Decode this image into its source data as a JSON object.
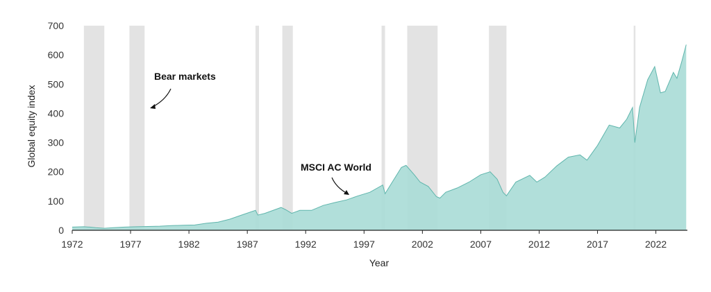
{
  "chart_data": {
    "type": "area",
    "title": "",
    "xlabel": "Year",
    "ylabel": "Global equity index",
    "xlim": [
      1972,
      2024.7
    ],
    "ylim": [
      0,
      700
    ],
    "x_ticks": [
      1972,
      1977,
      1982,
      1987,
      1992,
      1997,
      2002,
      2007,
      2012,
      2017,
      2022
    ],
    "y_ticks": [
      0,
      100,
      200,
      300,
      400,
      500,
      600,
      700
    ],
    "grid": false,
    "legend": "none",
    "colors": {
      "area_fill": "#a8dcd6",
      "area_line": "#5fb5ac",
      "bear_band": "#e3e3e3",
      "axis": "#222222"
    },
    "series": [
      {
        "name": "MSCI AC World",
        "points": [
          [
            1972.0,
            11
          ],
          [
            1973.0,
            12
          ],
          [
            1973.5,
            11
          ],
          [
            1974.0,
            9
          ],
          [
            1974.75,
            7
          ],
          [
            1975.5,
            9
          ],
          [
            1976.5,
            11
          ],
          [
            1977.5,
            12
          ],
          [
            1978.5,
            13
          ],
          [
            1979.5,
            14
          ],
          [
            1980.5,
            16
          ],
          [
            1981.5,
            17
          ],
          [
            1982.5,
            18
          ],
          [
            1983.5,
            24
          ],
          [
            1984.5,
            28
          ],
          [
            1985.5,
            38
          ],
          [
            1986.5,
            52
          ],
          [
            1987.7,
            68
          ],
          [
            1987.9,
            52
          ],
          [
            1988.5,
            58
          ],
          [
            1989.9,
            78
          ],
          [
            1990.3,
            70
          ],
          [
            1990.8,
            58
          ],
          [
            1991.5,
            68
          ],
          [
            1992.5,
            68
          ],
          [
            1993.5,
            85
          ],
          [
            1994.5,
            95
          ],
          [
            1995.5,
            104
          ],
          [
            1996.5,
            118
          ],
          [
            1997.5,
            130
          ],
          [
            1998.6,
            155
          ],
          [
            1998.8,
            125
          ],
          [
            1999.5,
            170
          ],
          [
            2000.2,
            215
          ],
          [
            2000.6,
            222
          ],
          [
            2001.3,
            190
          ],
          [
            2001.8,
            165
          ],
          [
            2002.5,
            150
          ],
          [
            2003.2,
            115
          ],
          [
            2003.5,
            110
          ],
          [
            2004.0,
            130
          ],
          [
            2005.0,
            145
          ],
          [
            2006.0,
            165
          ],
          [
            2007.0,
            190
          ],
          [
            2007.8,
            200
          ],
          [
            2008.4,
            175
          ],
          [
            2008.9,
            130
          ],
          [
            2009.2,
            118
          ],
          [
            2010.0,
            165
          ],
          [
            2011.2,
            188
          ],
          [
            2011.8,
            165
          ],
          [
            2012.5,
            182
          ],
          [
            2013.5,
            220
          ],
          [
            2014.5,
            250
          ],
          [
            2015.5,
            258
          ],
          [
            2016.1,
            240
          ],
          [
            2017.0,
            290
          ],
          [
            2018.0,
            360
          ],
          [
            2018.9,
            350
          ],
          [
            2019.5,
            380
          ],
          [
            2020.0,
            420
          ],
          [
            2020.2,
            300
          ],
          [
            2020.6,
            420
          ],
          [
            2021.3,
            515
          ],
          [
            2021.9,
            560
          ],
          [
            2022.4,
            470
          ],
          [
            2022.8,
            475
          ],
          [
            2023.5,
            540
          ],
          [
            2023.8,
            520
          ],
          [
            2024.2,
            575
          ],
          [
            2024.6,
            635
          ]
        ]
      }
    ],
    "bear_markets": [
      [
        1973.0,
        1974.75
      ],
      [
        1976.9,
        1978.2
      ],
      [
        1987.7,
        1988.0
      ],
      [
        1990.0,
        1990.9
      ],
      [
        1998.5,
        1998.8
      ],
      [
        2000.7,
        2003.3
      ],
      [
        2007.7,
        2009.2
      ],
      [
        2020.1,
        2020.25
      ]
    ],
    "annotations": [
      {
        "text": "Bear markets"
      },
      {
        "text": "MSCI AC World"
      }
    ]
  }
}
